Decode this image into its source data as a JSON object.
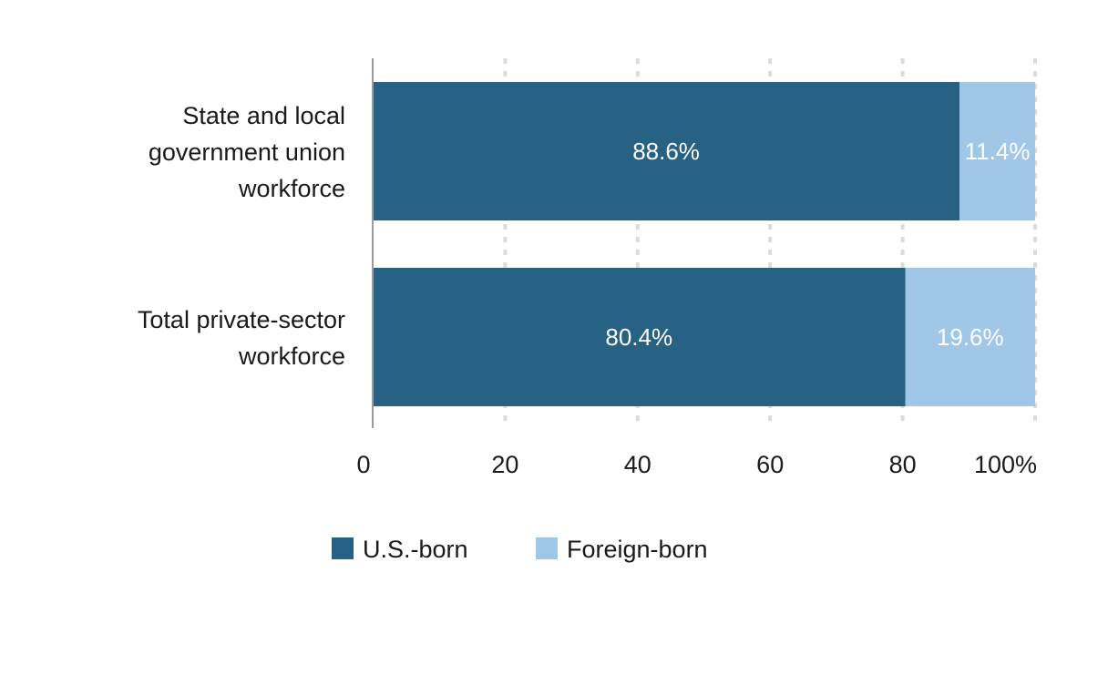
{
  "chart_data": {
    "type": "bar",
    "orientation": "horizontal",
    "stacked": true,
    "categories": [
      [
        "State and local",
        "government union",
        "workforce"
      ],
      [
        "Total private-sector",
        "workforce"
      ]
    ],
    "series": [
      {
        "name": "U.S.-born",
        "values": [
          88.6,
          80.4
        ],
        "labels": [
          "88.6%",
          "80.4%"
        ],
        "color": "#276184"
      },
      {
        "name": "Foreign-born",
        "values": [
          11.4,
          19.6
        ],
        "labels": [
          "11.4%",
          "19.6%"
        ],
        "color": "#a1c7e8"
      }
    ],
    "xticks": [
      "0",
      "20",
      "40",
      "60",
      "80",
      "100%"
    ],
    "xlim": [
      0,
      100
    ],
    "grid": true,
    "legend_position": "bottom"
  }
}
